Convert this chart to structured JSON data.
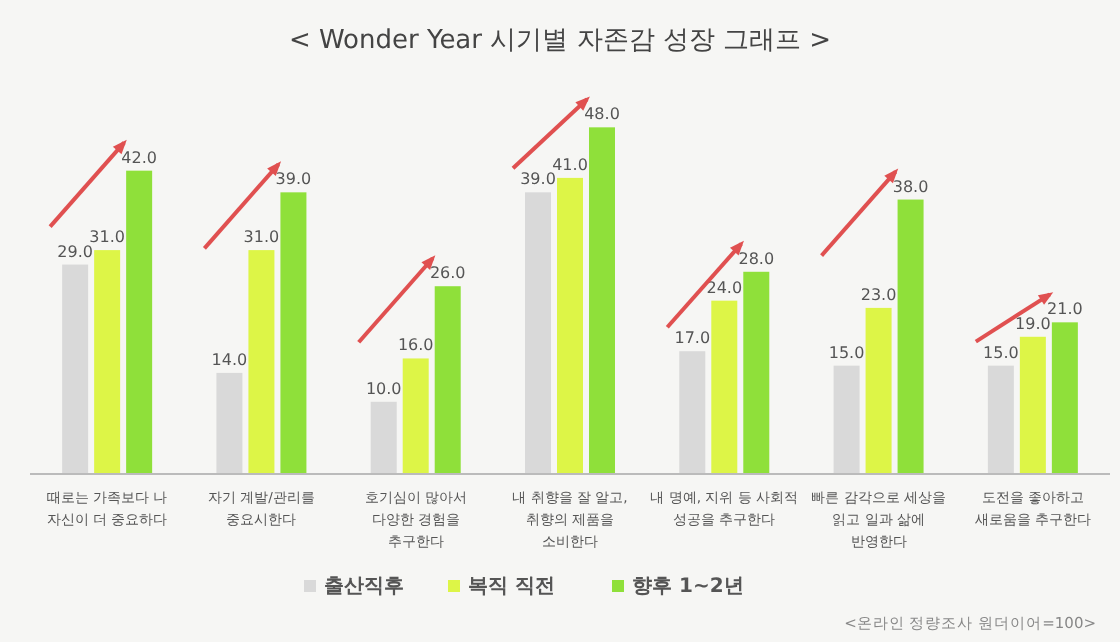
{
  "chart_data": {
    "type": "bar",
    "title": "< Wonder Year 시기별 자존감 성장 그래프 >",
    "categories": [
      "때로는 가족보다 나\n자신이 더 중요하다",
      "자기 계발/관리를\n중요시한다",
      "호기심이 많아서\n다양한 경험을\n추구한다",
      "내 취향을 잘 알고,\n취향의 제품을\n소비한다",
      "내 명예, 지위 등 사회적\n성공을 추구한다",
      "빠른 감각으로 세상을\n읽고 일과 삶에\n반영한다",
      "도전을 좋아하고\n새로움을 추구한다"
    ],
    "series": [
      {
        "name": "출산직후",
        "color": "#d9d9d9",
        "values": [
          29,
          14,
          10,
          39,
          17,
          15,
          15
        ],
        "value_labels": [
          "29.0",
          "14.0",
          "10.0",
          "39.0",
          "17.0",
          "15.0",
          "15.0"
        ]
      },
      {
        "name": "복직 직전",
        "color": "#ddf547",
        "values": [
          31,
          31,
          16,
          41,
          24,
          23,
          19
        ],
        "value_labels": [
          "31.0",
          "31.0",
          "16.0",
          "41.0",
          "24.0",
          "23.0",
          "19.0"
        ]
      },
      {
        "name": "향후 1~2년",
        "color": "#8fe03a",
        "values": [
          42,
          39,
          26,
          48,
          28,
          38,
          21
        ],
        "value_labels": [
          "42.0",
          "39.0",
          "26.0",
          "48.0",
          "28.0",
          "38.0",
          "21.0"
        ]
      }
    ],
    "legend": "bottom",
    "annotations": [
      "<온라인 정량조사 원더이어=100>"
    ]
  }
}
